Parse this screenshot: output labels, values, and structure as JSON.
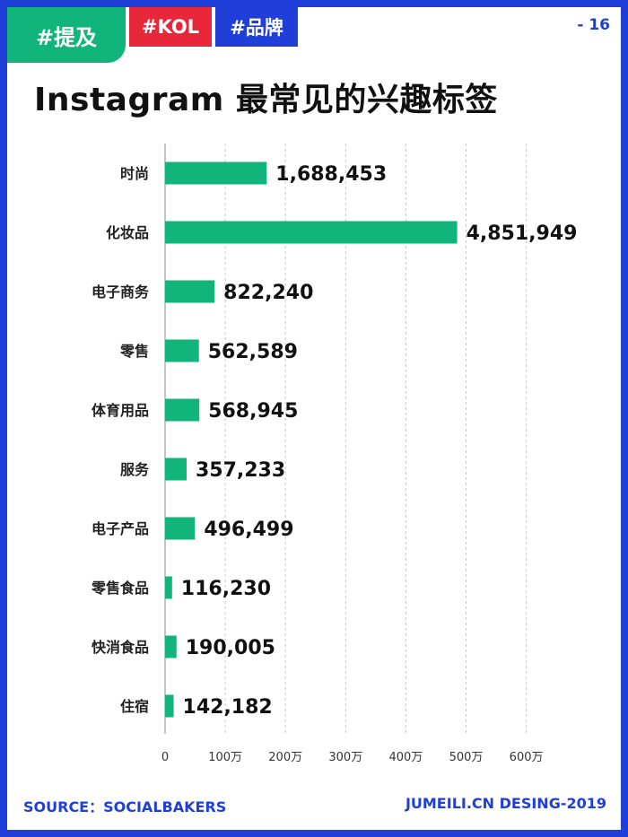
{
  "header": {
    "tags": [
      "#提及",
      "#KOL",
      "#品牌"
    ],
    "page_number": "- 16"
  },
  "title": "Instagram 最常见的兴趣标签",
  "colors": {
    "frame": "#1f3fd8",
    "bar": "#11b47a",
    "tag_mention": "#11b47a",
    "tag_kol": "#e8283a",
    "tag_brand": "#1f3fd8"
  },
  "chart_data": {
    "type": "bar",
    "orientation": "horizontal",
    "categories": [
      "时尚",
      "化妆品",
      "电子商务",
      "零售",
      "体育用品",
      "服务",
      "电子产品",
      "零售食品",
      "快消食品",
      "住宿"
    ],
    "values": [
      1688453,
      4851949,
      822240,
      562589,
      568945,
      357233,
      496499,
      116230,
      190005,
      142182
    ],
    "value_labels": [
      "1,688,453",
      "4,851,949",
      "822,240",
      "562,589",
      "568,945",
      "357,233",
      "496,499",
      "116,230",
      "190,005",
      "142,182"
    ],
    "x_ticks": [
      0,
      1000000,
      2000000,
      3000000,
      4000000,
      5000000,
      6000000
    ],
    "x_tick_labels": [
      "0",
      "100万",
      "200万",
      "300万",
      "400万",
      "500万",
      "600万"
    ],
    "xlim": [
      0,
      6000000
    ],
    "grid": "vertical dashed",
    "legend": "none"
  },
  "footer": {
    "source": "SOURCE：SOCIALBAKERS",
    "credit": "JUMEILI.CN DESING-2019"
  }
}
